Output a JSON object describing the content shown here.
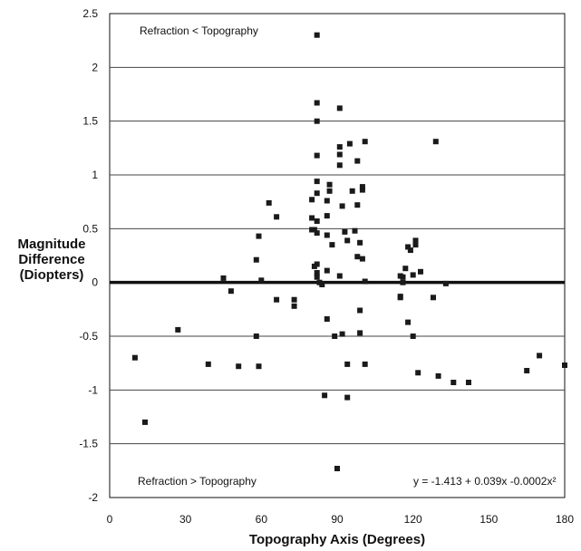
{
  "chart_data": {
    "type": "scatter",
    "title": "",
    "xlabel": "Topography Axis (Degrees)",
    "ylabel": [
      "Magnitude",
      "Difference",
      "(Diopters)"
    ],
    "xlim": [
      0,
      180
    ],
    "ylim": [
      -2,
      2.5
    ],
    "xticks": [
      0,
      30,
      60,
      90,
      120,
      150,
      180
    ],
    "yticks": [
      2.5,
      2,
      1.5,
      1,
      0.5,
      0,
      -0.5,
      -1,
      -1.5,
      -2
    ],
    "ytick_labels": [
      "2.5",
      "2",
      "1.5",
      "1",
      "0.5",
      "0",
      "-0.5",
      "-1",
      "-1.5",
      "-2"
    ],
    "grid": true,
    "annotations": {
      "top_left": "Refraction < Topography",
      "bottom_left": "Refraction > Topography",
      "equation": "y = -1.413 + 0.039x -0.0002x²"
    },
    "marker_color": "#1a1a1a",
    "series": [
      {
        "x": [
          10,
          14,
          27,
          39,
          45,
          48,
          51,
          58,
          58,
          59,
          59,
          60,
          63,
          66,
          66,
          73,
          73,
          80,
          80,
          80,
          81,
          81,
          82,
          82,
          82,
          82,
          82,
          82,
          82,
          82,
          82,
          82,
          82,
          83,
          84,
          85,
          86,
          86,
          86,
          86,
          86,
          87,
          87,
          88,
          89,
          90,
          91,
          91,
          91,
          91,
          91,
          92,
          92,
          93,
          94,
          94,
          94,
          95,
          96,
          97,
          98,
          98,
          98,
          99,
          99,
          99,
          100,
          100,
          100,
          101,
          101,
          101,
          115,
          115,
          115,
          116,
          116,
          117,
          118,
          118,
          119,
          120,
          120,
          121,
          121,
          122,
          123,
          128,
          129,
          130,
          133,
          136,
          142,
          165,
          170,
          180
        ],
        "y": [
          -0.7,
          -1.3,
          -0.44,
          -0.76,
          0.04,
          -0.08,
          -0.78,
          0.21,
          -0.5,
          -0.78,
          0.43,
          0.02,
          0.74,
          0.61,
          -0.16,
          -0.16,
          -0.22,
          0.77,
          0.6,
          0.49,
          0.15,
          0.49,
          2.3,
          1.67,
          1.5,
          1.18,
          0.94,
          0.83,
          0.57,
          0.46,
          0.17,
          0.09,
          0.05,
          0.0,
          -0.02,
          -1.05,
          -0.34,
          0.76,
          0.62,
          0.44,
          0.11,
          0.91,
          0.85,
          0.35,
          -0.5,
          -1.73,
          1.19,
          1.26,
          1.62,
          1.09,
          0.06,
          -0.48,
          0.71,
          0.47,
          0.39,
          -0.76,
          -1.07,
          1.29,
          0.85,
          0.48,
          0.72,
          0.24,
          1.13,
          -0.26,
          -0.47,
          0.37,
          0.22,
          0.86,
          0.89,
          1.31,
          0.01,
          -0.76,
          -0.13,
          -0.14,
          0.06,
          0.0,
          0.05,
          0.13,
          -0.37,
          0.33,
          0.3,
          0.07,
          -0.5,
          0.39,
          0.35,
          -0.84,
          0.1,
          -0.14,
          1.31,
          -0.87,
          -0.01,
          -0.93,
          -0.93,
          -0.82,
          -0.68,
          -0.77
        ]
      }
    ]
  }
}
